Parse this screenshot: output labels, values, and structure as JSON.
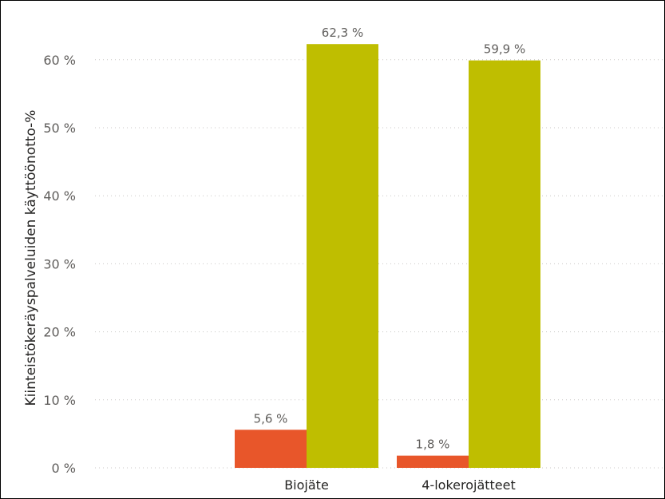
{
  "chart_data": {
    "type": "bar",
    "ylabel": "Kiinteistökeräyspalveluiden käyttöönotto-%",
    "categories": [
      "Biojäte",
      "4-lokerojätteet"
    ],
    "series": [
      {
        "values": [
          5.6,
          1.8
        ],
        "color": "#E8562A"
      },
      {
        "values": [
          62.3,
          59.9
        ],
        "color": "#BFBE00"
      }
    ],
    "data_labels": [
      [
        "5,6 %",
        "1,8 %"
      ],
      [
        "62,3 %",
        "59,9 %"
      ]
    ],
    "ylim": [
      0,
      60
    ],
    "yticks": [
      0,
      10,
      20,
      30,
      40,
      50,
      60
    ],
    "ytick_labels": [
      "0 %",
      "10 %",
      "20 %",
      "30 %",
      "40 %",
      "50 %",
      "60 %"
    ],
    "grid": true,
    "legend": "none"
  }
}
